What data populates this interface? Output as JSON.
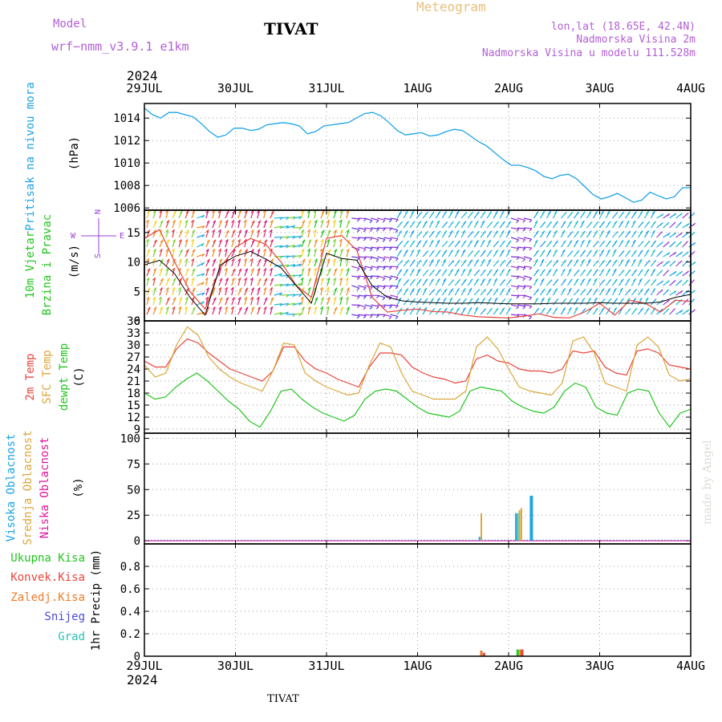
{
  "header": {
    "model_label": "Model",
    "model_name": "wrf−nmm_v3.9.1 e1km",
    "title": "TIVAT",
    "meteogram_label": "Meteogram",
    "location": "lon,lat (18.65E, 42.4N)",
    "elevation": "Nadmorska Visina 2m",
    "model_elevation": "Nadmorska Visina u modelu 111.528m",
    "top_year": "2024",
    "bottom_year": "2024",
    "footer_station": "TIVAT",
    "credit": "made by Angel"
  },
  "colors": {
    "pressure": "#1ca3e8",
    "temp2m": "#e8453c",
    "sfc": "#dba73a",
    "dewpt": "#22c51f",
    "high_cloud": "#1ca3e8",
    "mid_cloud": "#dba73a",
    "low_cloud": "#e0169c",
    "total_rain": "#22c51f",
    "conv_rain": "#e8453c",
    "frozen_rain": "#f07a2a",
    "snow": "#4b4bd8",
    "hail": "#2ac2b5",
    "wind_label": "#22c51f",
    "wind_dir": "#9b3fd0"
  },
  "chart_data": [
    {
      "id": "pressure",
      "type": "line",
      "ylabel": [
        "Pritisak na nivou mora",
        "(hPa)"
      ],
      "yticks": [
        1006,
        1008,
        1010,
        1012,
        1014
      ],
      "ylim": [
        1005.8,
        1015.3
      ],
      "x_ticks": [
        "29JUL",
        "30JUL",
        "31JUL",
        "1AUG",
        "2AUG",
        "3AUG",
        "4AUG"
      ],
      "grid": true,
      "series": [
        {
          "key": "pressure",
          "values": [
            1014.9,
            1014.3,
            1014.0,
            1014.5,
            1014.5,
            1014.3,
            1014.1,
            1013.5,
            1012.8,
            1012.3,
            1012.5,
            1013.1,
            1013.1,
            1012.9,
            1013.0,
            1013.4,
            1013.5,
            1013.6,
            1013.5,
            1013.3,
            1012.6,
            1012.8,
            1013.3,
            1013.4,
            1013.5,
            1013.6,
            1014.0,
            1014.4,
            1014.5,
            1014.2,
            1013.6,
            1012.9,
            1012.5,
            1012.6,
            1012.7,
            1012.4,
            1012.5,
            1012.8,
            1013.0,
            1012.9,
            1012.4,
            1011.9,
            1011.5,
            1010.9,
            1010.3,
            1009.8,
            1009.8,
            1009.6,
            1009.3,
            1008.8,
            1008.6,
            1008.9,
            1009.0,
            1008.6,
            1007.9,
            1007.2,
            1006.8,
            1007.0,
            1007.3,
            1006.9,
            1006.5,
            1006.7,
            1007.4,
            1007.1,
            1006.8,
            1007.0,
            1007.8,
            1007.8
          ]
        }
      ]
    },
    {
      "id": "wind",
      "type": "line",
      "ylabel": [
        "10m Vjetar",
        "Brzina i Pravac",
        "(m/s)"
      ],
      "compass": {
        "n": "N",
        "w": "W",
        "e": "E",
        "s": "S"
      },
      "yticks": [
        0,
        5,
        10,
        15
      ],
      "ylim": [
        0,
        18.8
      ],
      "grid": true,
      "series": [
        {
          "key": "speed_black",
          "values": [
            9.5,
            10.3,
            8.0,
            4.0,
            1.0,
            9.5,
            11.0,
            11.8,
            10.5,
            9.0,
            6.0,
            3.0,
            11.5,
            10.6,
            10.3,
            6.0,
            4.0,
            3.4,
            3.2,
            3.1,
            3.0,
            3.0,
            3.1,
            3.0,
            2.9,
            2.9,
            2.9,
            3.0,
            3.0,
            3.0,
            3.1,
            3.0,
            3.0,
            3.0,
            3.2,
            4.0,
            4.5
          ]
        },
        {
          "key": "speed_red",
          "values": [
            14.0,
            15.5,
            10.0,
            5.0,
            2.0,
            9.0,
            12.5,
            14.0,
            13.0,
            10.0,
            6.0,
            4.0,
            14.0,
            14.5,
            12.0,
            4.0,
            1.5,
            1.8,
            2.0,
            1.6,
            1.5,
            1.0,
            0.7,
            0.6,
            0.5,
            0.8,
            1.2,
            0.6,
            0.5,
            1.5,
            3.0,
            1.0,
            3.5,
            3.0,
            1.5,
            3.5,
            3.3
          ]
        }
      ]
    },
    {
      "id": "temperature",
      "type": "line",
      "ylabel": [
        "2m Temp",
        "SFC Temp",
        "dewpt Temp",
        "(C)"
      ],
      "yticks": [
        9,
        12,
        15,
        18,
        21,
        24,
        27,
        30,
        33,
        36
      ],
      "ylim": [
        8,
        36
      ],
      "grid": true,
      "series": [
        {
          "key": "temp2m",
          "values": [
            26.0,
            24.5,
            24.5,
            29.0,
            31.5,
            30.5,
            28.0,
            26.0,
            24.0,
            23.0,
            22.0,
            21.0,
            23.5,
            29.5,
            29.5,
            26.0,
            24.0,
            23.0,
            21.5,
            20.5,
            19.5,
            24.5,
            28.0,
            28.0,
            27.5,
            24.5,
            23.0,
            22.0,
            21.5,
            20.5,
            21.0,
            26.5,
            27.5,
            26.0,
            25.5,
            24.0,
            23.5,
            23.5,
            23.0,
            24.0,
            28.5,
            28.0,
            28.5,
            24.5,
            23.0,
            22.5,
            28.5,
            29.0,
            28.0,
            25.0,
            24.5,
            24.0
          ]
        },
        {
          "key": "sfc",
          "values": [
            25.0,
            22.0,
            23.0,
            30.0,
            34.5,
            32.5,
            27.0,
            24.0,
            22.0,
            20.5,
            19.5,
            18.5,
            23.5,
            30.5,
            30.0,
            23.0,
            21.0,
            19.5,
            18.5,
            17.5,
            18.0,
            25.0,
            30.5,
            29.5,
            23.0,
            18.5,
            17.5,
            16.5,
            16.5,
            16.5,
            18.5,
            29.5,
            32.0,
            29.0,
            24.0,
            19.5,
            18.5,
            18.0,
            17.5,
            20.5,
            31.0,
            32.0,
            28.0,
            20.5,
            19.5,
            18.5,
            30.0,
            32.0,
            29.5,
            22.5,
            21.0,
            21.5
          ]
        },
        {
          "key": "dewpt",
          "values": [
            18.0,
            16.5,
            17.0,
            19.5,
            21.5,
            23.0,
            21.0,
            18.5,
            16.0,
            14.0,
            11.0,
            9.5,
            13.5,
            18.5,
            19.0,
            16.5,
            14.5,
            13.0,
            12.0,
            11.0,
            12.5,
            16.5,
            18.5,
            19.0,
            18.5,
            16.5,
            14.5,
            13.0,
            12.5,
            12.0,
            13.5,
            18.5,
            19.5,
            19.0,
            18.5,
            16.0,
            14.5,
            13.5,
            13.0,
            14.5,
            18.5,
            20.5,
            19.5,
            14.5,
            13.0,
            12.5,
            18.0,
            19.0,
            18.5,
            13.0,
            9.5,
            13.0,
            14.0
          ]
        }
      ]
    },
    {
      "id": "clouds",
      "type": "bar",
      "ylabel": [
        "Visoka Oblacnost",
        "Srednja Oblacnost",
        "Niska Oblacnost",
        "(%)"
      ],
      "yticks": [
        0,
        25,
        50,
        75,
        100
      ],
      "ylim": [
        -3,
        105
      ],
      "grid": true,
      "bars": [
        {
          "day": 3.68,
          "key": "high_cloud",
          "value": 4
        },
        {
          "day": 3.7,
          "key": "mid_cloud",
          "value": 27
        },
        {
          "day": 4.08,
          "key": "high_cloud",
          "value": 27
        },
        {
          "day": 4.1,
          "key": "hail",
          "value": 27
        },
        {
          "day": 4.12,
          "key": "mid_cloud",
          "value": 30
        },
        {
          "day": 4.14,
          "key": "mid_cloud",
          "value": 32
        },
        {
          "day": 4.25,
          "key": "high_cloud",
          "value": 44
        }
      ]
    },
    {
      "id": "precip",
      "type": "bar",
      "ylabel": [
        "1hr Precip (mm)"
      ],
      "legend": [
        {
          "key": "total_rain",
          "label": "Ukupna Kisa"
        },
        {
          "key": "conv_rain",
          "label": "Konvek.Kisa"
        },
        {
          "key": "frozen_rain",
          "label": "Zaledj.Kisa"
        },
        {
          "key": "snow",
          "label": "Snijeg"
        },
        {
          "key": "hail",
          "label": "Grad"
        }
      ],
      "yticks": [
        0,
        0.2,
        0.4,
        0.6,
        0.8
      ],
      "ylim": [
        0,
        1.0
      ],
      "grid": true,
      "bars": [
        {
          "day": 3.7,
          "key": "frozen_rain",
          "value": 0.05
        },
        {
          "day": 3.73,
          "key": "conv_rain",
          "value": 0.03
        },
        {
          "day": 4.1,
          "key": "total_rain",
          "value": 0.06
        },
        {
          "day": 4.13,
          "key": "frozen_rain",
          "value": 0.06
        },
        {
          "day": 4.15,
          "key": "conv_rain",
          "value": 0.06
        }
      ]
    }
  ]
}
